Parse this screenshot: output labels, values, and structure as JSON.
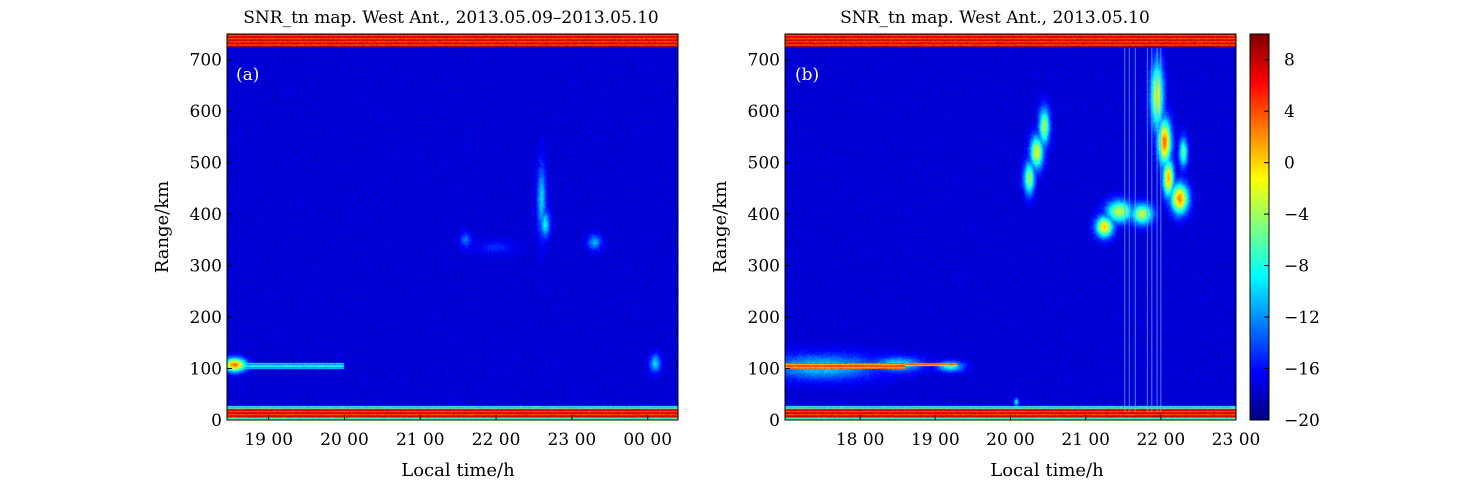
{
  "chart_data": [
    {
      "type": "heatmap",
      "panel_label": "(a)",
      "title": "SNR_tn map. West Ant., 2013.05.09–2013.05.10",
      "xlabel": "Local time/h",
      "ylabel": "Range/km",
      "xlim": [
        18.45,
        24.4
      ],
      "ylim": [
        0,
        750
      ],
      "xticks": [
        {
          "v": 19,
          "label": "19 00"
        },
        {
          "v": 20,
          "label": "20 00"
        },
        {
          "v": 21,
          "label": "21 00"
        },
        {
          "v": 22,
          "label": "22 00"
        },
        {
          "v": 23,
          "label": "23 00"
        },
        {
          "v": 24,
          "label": "00 00"
        }
      ],
      "yticks": [
        0,
        100,
        200,
        300,
        400,
        500,
        600,
        700
      ],
      "background_level": -17.5,
      "bands": [
        {
          "y0": 725,
          "y1": 750,
          "level": 6
        },
        {
          "y0": 3,
          "y1": 22,
          "level": 6
        },
        {
          "y0": 22,
          "y1": 27,
          "level": -8
        },
        {
          "y0": 0,
          "y1": 3,
          "level": -8
        },
        {
          "y0": 100,
          "y1": 110,
          "level": -10,
          "x0": 18.45,
          "x1": 20.0
        }
      ],
      "features": [
        {
          "x": 18.55,
          "y": 107,
          "sx": 0.1,
          "sy": 9,
          "level": 3
        },
        {
          "x": 24.1,
          "y": 110,
          "sx": 0.05,
          "sy": 12,
          "level": -10
        },
        {
          "x": 22.6,
          "y": 430,
          "sx": 0.04,
          "sy": 45,
          "level": -10
        },
        {
          "x": 22.65,
          "y": 380,
          "sx": 0.04,
          "sy": 18,
          "level": -9
        },
        {
          "x": 23.3,
          "y": 345,
          "sx": 0.06,
          "sy": 10,
          "level": -11
        },
        {
          "x": 21.6,
          "y": 350,
          "sx": 0.05,
          "sy": 10,
          "level": -13
        },
        {
          "x": 22.0,
          "y": 335,
          "sx": 0.15,
          "sy": 8,
          "level": -15
        }
      ]
    },
    {
      "type": "heatmap",
      "panel_label": "(b)",
      "title": "SNR_tn map. West Ant., 2013.05.10",
      "xlabel": "Local time/h",
      "ylabel": "Range/km",
      "xlim": [
        17.0,
        23.0
      ],
      "ylim": [
        0,
        750
      ],
      "xticks": [
        {
          "v": 18,
          "label": "18 00"
        },
        {
          "v": 19,
          "label": "19 00"
        },
        {
          "v": 20,
          "label": "20 00"
        },
        {
          "v": 21,
          "label": "21 00"
        },
        {
          "v": 22,
          "label": "22 00"
        },
        {
          "v": 23,
          "label": "23 00"
        }
      ],
      "yticks": [
        0,
        100,
        200,
        300,
        400,
        500,
        600,
        700
      ],
      "background_level": -17.5,
      "bands": [
        {
          "y0": 725,
          "y1": 750,
          "level": 6
        },
        {
          "y0": 3,
          "y1": 22,
          "level": 6
        },
        {
          "y0": 22,
          "y1": 27,
          "level": -8
        },
        {
          "y0": 0,
          "y1": 3,
          "level": -8
        },
        {
          "y0": 100,
          "y1": 110,
          "level": 3,
          "x0": 17.0,
          "x1": 18.6
        },
        {
          "y0": 104,
          "y1": 110,
          "level": 2,
          "x0": 18.6,
          "x1": 19.3
        }
      ],
      "features": [
        {
          "x": 17.5,
          "y": 103,
          "sx": 0.5,
          "sy": 17,
          "level": -10
        },
        {
          "x": 18.5,
          "y": 108,
          "sx": 0.22,
          "sy": 10,
          "level": -9
        },
        {
          "x": 19.2,
          "y": 104,
          "sx": 0.12,
          "sy": 7,
          "level": -8
        },
        {
          "x": 20.25,
          "y": 470,
          "sx": 0.05,
          "sy": 22,
          "level": -4
        },
        {
          "x": 20.35,
          "y": 520,
          "sx": 0.06,
          "sy": 22,
          "level": -2
        },
        {
          "x": 20.45,
          "y": 570,
          "sx": 0.05,
          "sy": 25,
          "level": -4
        },
        {
          "x": 21.25,
          "y": 375,
          "sx": 0.08,
          "sy": 14,
          "level": 0
        },
        {
          "x": 21.45,
          "y": 405,
          "sx": 0.12,
          "sy": 15,
          "level": -3
        },
        {
          "x": 21.75,
          "y": 400,
          "sx": 0.1,
          "sy": 14,
          "level": -3
        },
        {
          "x": 21.95,
          "y": 630,
          "sx": 0.06,
          "sy": 45,
          "level": -2
        },
        {
          "x": 22.05,
          "y": 540,
          "sx": 0.06,
          "sy": 30,
          "level": 3
        },
        {
          "x": 22.1,
          "y": 470,
          "sx": 0.05,
          "sy": 25,
          "level": 1
        },
        {
          "x": 22.25,
          "y": 430,
          "sx": 0.08,
          "sy": 20,
          "level": 2
        },
        {
          "x": 22.3,
          "y": 520,
          "sx": 0.04,
          "sy": 20,
          "level": -6
        },
        {
          "x": 20.08,
          "y": 35,
          "sx": 0.02,
          "sy": 5,
          "level": -8
        }
      ],
      "vertical_streaks": [
        21.52,
        21.58,
        21.66,
        21.82,
        21.88,
        21.95,
        22.0
      ]
    }
  ],
  "colorbar": {
    "min": -20,
    "max": 10,
    "ticks": [
      {
        "v": 8,
        "label": "8"
      },
      {
        "v": 4,
        "label": "4"
      },
      {
        "v": 0,
        "label": "0"
      },
      {
        "v": -4,
        "label": "−4"
      },
      {
        "v": -8,
        "label": "−8"
      },
      {
        "v": -12,
        "label": "−12"
      },
      {
        "v": -16,
        "label": "−16"
      },
      {
        "v": -20,
        "label": "−20"
      }
    ],
    "colormap": "jet"
  }
}
